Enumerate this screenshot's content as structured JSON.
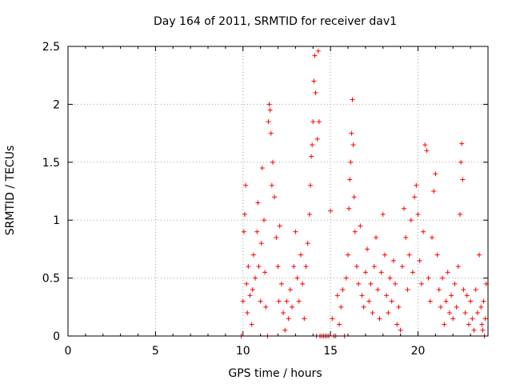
{
  "chart_data": {
    "type": "scatter",
    "title": "Day 164 of 2011, SRMTID for receiver dav1",
    "xlabel": "GPS time / hours",
    "ylabel": "SRMTID / TECUs",
    "xlim": [
      0,
      24
    ],
    "ylim": [
      0,
      2.5
    ],
    "x_ticks": [
      0,
      5,
      10,
      15,
      20
    ],
    "x_tick_labels": [
      "0",
      "5",
      "10",
      "15",
      "20"
    ],
    "y_ticks": [
      0,
      0.5,
      1,
      1.5,
      2,
      2.5
    ],
    "y_tick_labels": [
      "0",
      "0.5",
      "1",
      "1.5",
      "2",
      "2.5"
    ],
    "grid": true,
    "marker": "+",
    "series": [
      {
        "name": "dav1",
        "color": "#ff0000",
        "points": [
          [
            9.9,
            0.0
          ],
          [
            10.0,
            0.3
          ],
          [
            10.05,
            0.9
          ],
          [
            10.1,
            1.05
          ],
          [
            10.15,
            1.3
          ],
          [
            10.2,
            0.45
          ],
          [
            10.25,
            0.2
          ],
          [
            10.3,
            0.6
          ],
          [
            10.4,
            0.35
          ],
          [
            10.5,
            0.1
          ],
          [
            10.55,
            0.4
          ],
          [
            10.6,
            0.7
          ],
          [
            10.7,
            0.5
          ],
          [
            10.8,
            0.9
          ],
          [
            10.85,
            1.15
          ],
          [
            10.9,
            0.6
          ],
          [
            11.0,
            0.3
          ],
          [
            11.05,
            0.8
          ],
          [
            11.1,
            1.45
          ],
          [
            11.2,
            1.0
          ],
          [
            11.25,
            0.55
          ],
          [
            11.3,
            0.25
          ],
          [
            11.4,
            0.0
          ],
          [
            11.45,
            1.85
          ],
          [
            11.5,
            2.0
          ],
          [
            11.55,
            1.95
          ],
          [
            11.6,
            1.75
          ],
          [
            11.65,
            1.3
          ],
          [
            11.7,
            1.5
          ],
          [
            11.8,
            1.2
          ],
          [
            11.9,
            0.85
          ],
          [
            12.0,
            0.6
          ],
          [
            12.05,
            0.3
          ],
          [
            12.1,
            0.95
          ],
          [
            12.2,
            0.45
          ],
          [
            12.3,
            0.2
          ],
          [
            12.4,
            0.05
          ],
          [
            12.5,
            0.3
          ],
          [
            12.6,
            0.15
          ],
          [
            12.7,
            0.4
          ],
          [
            12.8,
            0.25
          ],
          [
            12.9,
            0.6
          ],
          [
            13.0,
            0.9
          ],
          [
            13.1,
            0.5
          ],
          [
            13.2,
            0.3
          ],
          [
            13.3,
            0.7
          ],
          [
            13.4,
            0.45
          ],
          [
            13.5,
            0.15
          ],
          [
            13.6,
            0.6
          ],
          [
            13.7,
            0.8
          ],
          [
            13.8,
            1.05
          ],
          [
            13.85,
            1.3
          ],
          [
            13.9,
            1.55
          ],
          [
            13.95,
            1.65
          ],
          [
            14.0,
            1.85
          ],
          [
            14.05,
            2.2
          ],
          [
            14.1,
            2.42
          ],
          [
            14.15,
            2.1
          ],
          [
            14.2,
            0.0
          ],
          [
            14.25,
            1.7
          ],
          [
            14.3,
            2.46
          ],
          [
            14.35,
            1.85
          ],
          [
            14.4,
            0.0
          ],
          [
            14.5,
            0.0
          ],
          [
            14.6,
            0.0
          ],
          [
            14.7,
            0.0
          ],
          [
            14.8,
            0.0
          ],
          [
            14.9,
            0.0
          ],
          [
            15.0,
            1.08
          ],
          [
            15.1,
            0.15
          ],
          [
            15.2,
            0.0
          ],
          [
            15.3,
            0.0
          ],
          [
            15.4,
            0.35
          ],
          [
            15.5,
            0.1
          ],
          [
            15.6,
            0.25
          ],
          [
            15.7,
            0.4
          ],
          [
            15.8,
            0.0
          ],
          [
            15.9,
            0.5
          ],
          [
            16.0,
            0.7
          ],
          [
            16.05,
            1.1
          ],
          [
            16.1,
            1.35
          ],
          [
            16.15,
            1.5
          ],
          [
            16.2,
            1.75
          ],
          [
            16.25,
            2.04
          ],
          [
            16.3,
            1.65
          ],
          [
            16.35,
            1.2
          ],
          [
            16.4,
            0.9
          ],
          [
            16.5,
            0.6
          ],
          [
            16.6,
            0.45
          ],
          [
            16.7,
            0.95
          ],
          [
            16.8,
            0.35
          ],
          [
            16.9,
            0.25
          ],
          [
            17.0,
            0.55
          ],
          [
            17.1,
            0.75
          ],
          [
            17.2,
            0.3
          ],
          [
            17.3,
            0.45
          ],
          [
            17.4,
            0.2
          ],
          [
            17.5,
            0.6
          ],
          [
            17.6,
            0.85
          ],
          [
            17.7,
            0.4
          ],
          [
            17.8,
            0.15
          ],
          [
            17.9,
            0.55
          ],
          [
            18.0,
            1.05
          ],
          [
            18.1,
            0.7
          ],
          [
            18.2,
            0.35
          ],
          [
            18.3,
            0.2
          ],
          [
            18.4,
            0.5
          ],
          [
            18.5,
            0.3
          ],
          [
            18.6,
            0.65
          ],
          [
            18.7,
            0.45
          ],
          [
            18.8,
            0.1
          ],
          [
            18.9,
            0.25
          ],
          [
            19.0,
            0.05
          ],
          [
            19.1,
            0.6
          ],
          [
            19.2,
            1.1
          ],
          [
            19.3,
            0.85
          ],
          [
            19.4,
            0.4
          ],
          [
            19.5,
            0.7
          ],
          [
            19.6,
            1.0
          ],
          [
            19.7,
            0.55
          ],
          [
            19.8,
            1.2
          ],
          [
            19.9,
            1.3
          ],
          [
            20.0,
            1.05
          ],
          [
            20.1,
            0.65
          ],
          [
            20.2,
            0.45
          ],
          [
            20.3,
            0.9
          ],
          [
            20.4,
            1.65
          ],
          [
            20.5,
            1.6
          ],
          [
            20.6,
            0.5
          ],
          [
            20.7,
            0.3
          ],
          [
            20.8,
            0.85
          ],
          [
            20.9,
            1.25
          ],
          [
            21.0,
            1.4
          ],
          [
            21.1,
            0.7
          ],
          [
            21.2,
            0.4
          ],
          [
            21.3,
            0.25
          ],
          [
            21.4,
            0.5
          ],
          [
            21.5,
            0.1
          ],
          [
            21.6,
            0.3
          ],
          [
            21.7,
            0.55
          ],
          [
            21.8,
            0.2
          ],
          [
            21.9,
            0.35
          ],
          [
            22.0,
            0.15
          ],
          [
            22.1,
            0.45
          ],
          [
            22.2,
            0.25
          ],
          [
            22.3,
            0.6
          ],
          [
            22.4,
            1.05
          ],
          [
            22.45,
            1.5
          ],
          [
            22.5,
            1.66
          ],
          [
            22.55,
            1.35
          ],
          [
            22.6,
            0.4
          ],
          [
            22.7,
            0.2
          ],
          [
            22.8,
            0.35
          ],
          [
            22.9,
            0.1
          ],
          [
            23.0,
            0.3
          ],
          [
            23.1,
            0.15
          ],
          [
            23.2,
            0.05
          ],
          [
            23.3,
            0.4
          ],
          [
            23.4,
            0.2
          ],
          [
            23.5,
            0.7
          ],
          [
            23.6,
            0.25
          ],
          [
            23.65,
            0.1
          ],
          [
            23.7,
            0.05
          ],
          [
            23.75,
            0.3
          ],
          [
            23.8,
            0.0
          ],
          [
            23.85,
            0.15
          ],
          [
            23.9,
            0.45
          ]
        ]
      }
    ]
  }
}
